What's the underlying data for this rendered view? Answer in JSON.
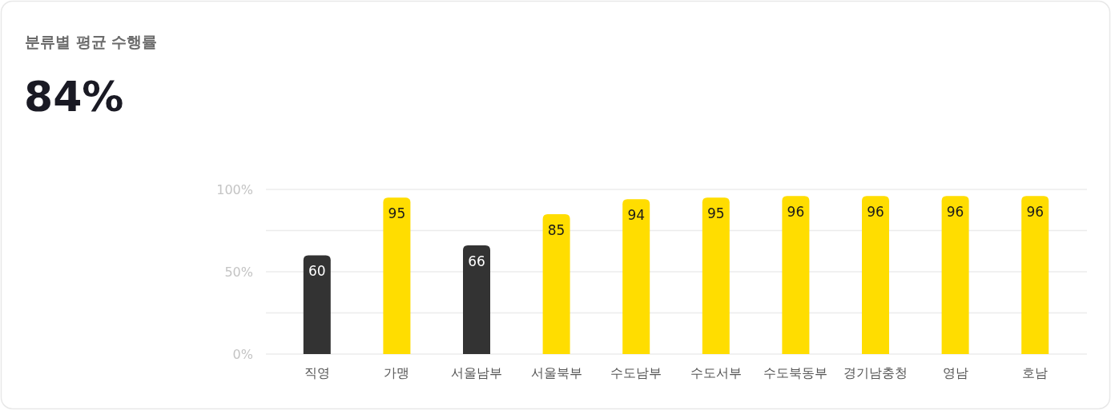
{
  "chart_data": {
    "type": "bar",
    "title": "분류별 평균 수행률",
    "subtitle": "84%",
    "categories": [
      "직영",
      "가맹",
      "서울남부",
      "서울북부",
      "수도남부",
      "수도서부",
      "수도북동부",
      "경기남충청",
      "영남",
      "호남"
    ],
    "values": [
      60,
      95,
      66,
      85,
      94,
      95,
      96,
      96,
      96,
      96
    ],
    "colors": [
      "#333333",
      "#ffdd00",
      "#333333",
      "#ffdd00",
      "#ffdd00",
      "#ffdd00",
      "#ffdd00",
      "#ffdd00",
      "#ffdd00",
      "#ffdd00"
    ],
    "ylim": [
      0,
      100
    ],
    "yticks": [
      {
        "value": 0,
        "label": "0%"
      },
      {
        "value": 25,
        "label": null
      },
      {
        "value": 50,
        "label": "50%"
      },
      {
        "value": 75,
        "label": null
      },
      {
        "value": 100,
        "label": "100%"
      }
    ],
    "grid": "y",
    "data_labels": true
  }
}
